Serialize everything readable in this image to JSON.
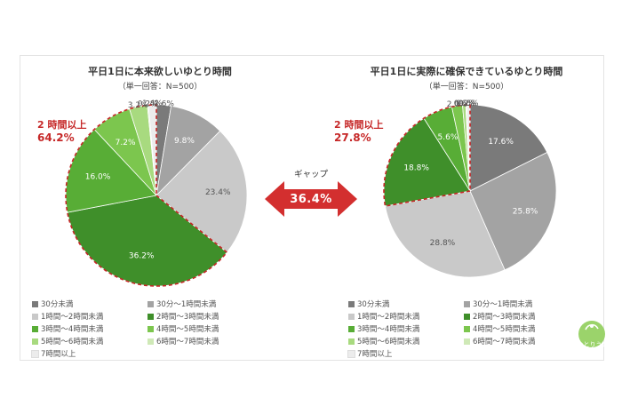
{
  "gap": {
    "label": "ギャップ",
    "value": "36.4%"
  },
  "logo": {
    "text": "ゆとりうむ"
  },
  "colors": {
    "highlight": "#c62828",
    "arrow": "#d32f2f"
  },
  "chart_data": [
    {
      "type": "pie",
      "title": "平日1日に本来欲しいゆとり時間",
      "subtitle": "（単一回答：N=500）",
      "highlight": {
        "label": "2 時間以上",
        "value": "64.2%"
      },
      "slices": [
        {
          "name": "30分未満",
          "value": 2.6,
          "label": "2.6%",
          "color": "#7a7a7a"
        },
        {
          "name": "30分～1時間未満",
          "value": 9.8,
          "label": "9.8%",
          "color": "#a3a3a3"
        },
        {
          "name": "1時間～2時間未満",
          "value": 23.4,
          "label": "23.4%",
          "color": "#c9c9c9"
        },
        {
          "name": "2時間～3時間未満",
          "value": 36.2,
          "label": "36.2%",
          "color": "#3f8f2a"
        },
        {
          "name": "3時間～4時間未満",
          "value": 16.0,
          "label": "16.0%",
          "color": "#58ad36"
        },
        {
          "name": "4時間～5時間未満",
          "value": 7.2,
          "label": "7.2%",
          "color": "#7cc64e"
        },
        {
          "name": "5時間～6時間未満",
          "value": 3.2,
          "label": "3.2%",
          "color": "#a8da7f"
        },
        {
          "name": "6時間～7時間未満",
          "value": 0.2,
          "label": "0.2%",
          "color": "#cfe9b7"
        },
        {
          "name": "7時間以上",
          "value": 1.4,
          "label": "1.4%",
          "color": "#ececec"
        }
      ]
    },
    {
      "type": "pie",
      "title": "平日1日に実際に確保できているゆとり時間",
      "subtitle": "（単一回答：N=500）",
      "highlight": {
        "label": "2 時間以上",
        "value": "27.8%"
      },
      "slices": [
        {
          "name": "30分未満",
          "value": 17.6,
          "label": "17.6%",
          "color": "#7a7a7a"
        },
        {
          "name": "30分～1時間未満",
          "value": 25.8,
          "label": "25.8%",
          "color": "#a3a3a3"
        },
        {
          "name": "1時間～2時間未満",
          "value": 28.8,
          "label": "28.8%",
          "color": "#c9c9c9"
        },
        {
          "name": "2時間～3時間未満",
          "value": 18.8,
          "label": "18.8%",
          "color": "#3f8f2a"
        },
        {
          "name": "3時間～4時間未満",
          "value": 5.6,
          "label": "5.6%",
          "color": "#58ad36"
        },
        {
          "name": "4時間～5時間未満",
          "value": 2.0,
          "label": "2.0%",
          "color": "#7cc64e"
        },
        {
          "name": "5時間～6時間未満",
          "value": 0.6,
          "label": "0.6%",
          "color": "#a8da7f"
        },
        {
          "name": "6時間～7時間未満",
          "value": 0.2,
          "label": "0.2%",
          "color": "#cfe9b7"
        },
        {
          "name": "7時間以上",
          "value": 0.6,
          "label": "0.6%",
          "color": "#ececec"
        }
      ]
    }
  ]
}
